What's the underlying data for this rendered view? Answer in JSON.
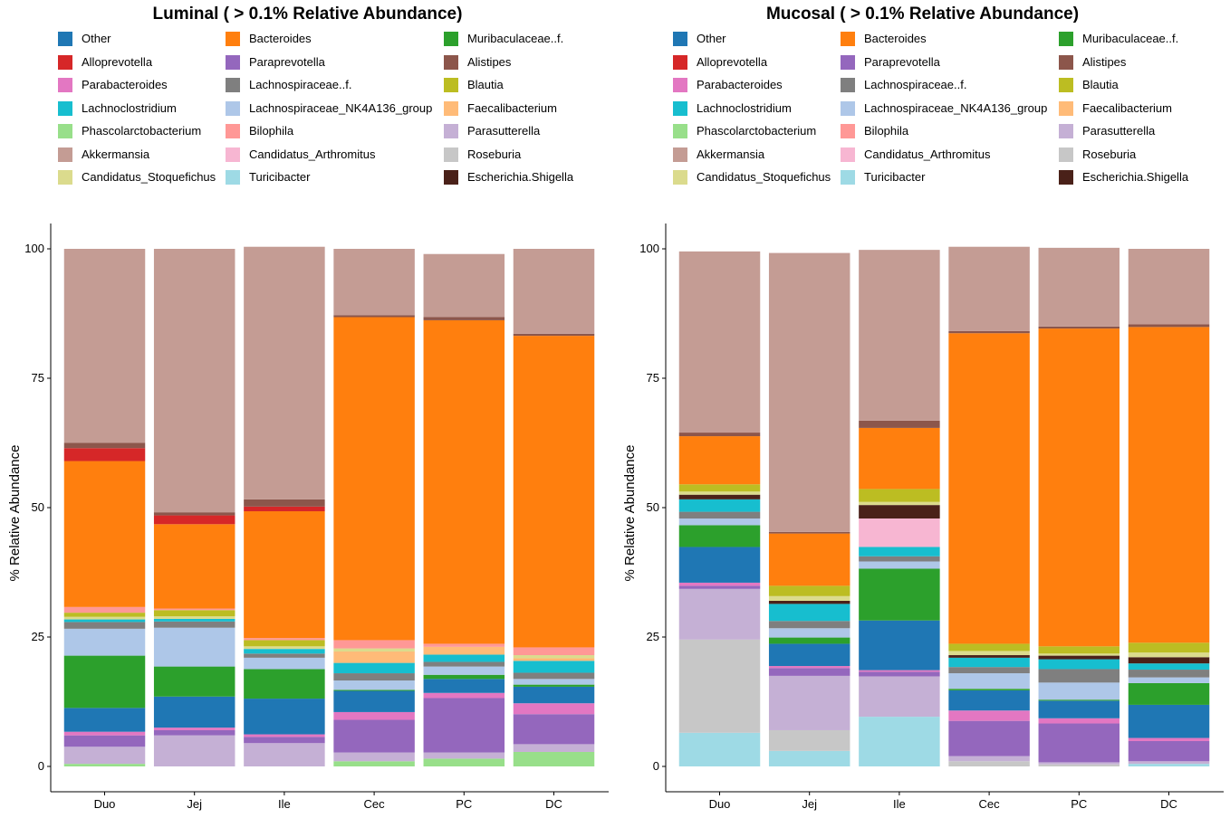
{
  "taxa": [
    "Other",
    "Bacteroides",
    "Muribaculaceae..f.",
    "Alloprevotella",
    "Paraprevotella",
    "Alistipes",
    "Parabacteroides",
    "Lachnospiraceae..f.",
    "Blautia",
    "Lachnoclostridium",
    "Lachnospiraceae_NK4A136_group",
    "Faecalibacterium",
    "Phascolarctobacterium",
    "Bilophila",
    "Parasutterella",
    "Akkermansia",
    "Candidatus_Arthromitus",
    "Roseburia",
    "Candidatus_Stoquefichus",
    "Turicibacter",
    "Escherichia.Shigella"
  ],
  "colors": {
    "Other": "#1f77b4",
    "Bacteroides": "#ff7f0e",
    "Muribaculaceae..f.": "#2ca02c",
    "Alloprevotella": "#d62728",
    "Paraprevotella": "#9467bd",
    "Alistipes": "#8c564b",
    "Parabacteroides": "#e377c2",
    "Lachnospiraceae..f.": "#7f7f7f",
    "Blautia": "#bcbd22",
    "Lachnoclostridium": "#17becf",
    "Lachnospiraceae_NK4A136_group": "#aec7e8",
    "Faecalibacterium": "#ffbb78",
    "Phascolarctobacterium": "#98df8a",
    "Bilophila": "#ff9896",
    "Parasutterella": "#c5b0d5",
    "Akkermansia": "#c49c94",
    "Candidatus_Arthromitus": "#f7b6d2",
    "Roseburia": "#c7c7c7",
    "Candidatus_Stoquefichus": "#dbdb8d",
    "Turicibacter": "#9edae5",
    "Escherichia.Shigella": "#4a2119"
  },
  "stack_order": [
    "Turicibacter",
    "Roseburia",
    "Phascolarctobacterium",
    "Parasutterella",
    "Paraprevotella",
    "Parabacteroides",
    "Other",
    "Muribaculaceae..f.",
    "Lachnospiraceae_NK4A136_group",
    "Lachnospiraceae..f.",
    "Lachnoclostridium",
    "Faecalibacterium",
    "Candidatus_Arthromitus",
    "Escherichia.Shigella",
    "Candidatus_Stoquefichus",
    "Blautia",
    "Bilophila",
    "Bacteroides",
    "Alloprevotella",
    "Alistipes",
    "Akkermansia"
  ],
  "chart_data": [
    {
      "type": "bar",
      "stacked": true,
      "title": "Luminal ( > 0.1% Relative Abundance)",
      "xlabel": "",
      "ylabel": "% Relative Abundance",
      "ylim": [
        0,
        100
      ],
      "yticks": [
        0,
        25,
        50,
        75,
        100
      ],
      "categories": [
        "Duo",
        "Jej",
        "Ile",
        "Cec",
        "PC",
        "DC"
      ],
      "series": [
        {
          "name": "Turicibacter",
          "values": [
            0,
            0,
            0,
            0,
            0,
            0
          ]
        },
        {
          "name": "Roseburia",
          "values": [
            0,
            0,
            0,
            0,
            0,
            0
          ]
        },
        {
          "name": "Phascolarctobacterium",
          "values": [
            0.5,
            0,
            0,
            1.0,
            1.5,
            2.8
          ]
        },
        {
          "name": "Parasutterella",
          "values": [
            3.3,
            6.0,
            4.5,
            1.7,
            1.2,
            1.5
          ]
        },
        {
          "name": "Paraprevotella",
          "values": [
            2.2,
            1.0,
            1.2,
            6.3,
            10.5,
            5.8
          ]
        },
        {
          "name": "Parabacteroides",
          "values": [
            0.7,
            0.5,
            0.5,
            1.5,
            1.0,
            2.1
          ]
        },
        {
          "name": "Other",
          "values": [
            4.6,
            6.0,
            6.9,
            4.1,
            2.7,
            3.2
          ]
        },
        {
          "name": "Muribaculaceae..f.",
          "values": [
            10.1,
            5.8,
            5.7,
            0.2,
            0.8,
            0.4
          ]
        },
        {
          "name": "Lachnospiraceae_NK4A136_group",
          "values": [
            5.2,
            7.5,
            2.2,
            1.8,
            1.6,
            1.1
          ]
        },
        {
          "name": "Lachnospiraceae..f.",
          "values": [
            1.3,
            1.2,
            0.8,
            1.4,
            0.9,
            1.2
          ]
        },
        {
          "name": "Lachnoclostridium",
          "values": [
            0.5,
            0.5,
            0.9,
            2.0,
            1.4,
            2.3
          ]
        },
        {
          "name": "Faecalibacterium",
          "values": [
            0,
            0,
            0,
            2.2,
            1.5,
            0.5
          ]
        },
        {
          "name": "Candidatus_Arthromitus",
          "values": [
            0,
            0,
            0,
            0,
            0,
            0
          ]
        },
        {
          "name": "Escherichia.Shigella",
          "values": [
            0,
            0,
            0,
            0,
            0,
            0
          ]
        },
        {
          "name": "Candidatus_Stoquefichus",
          "values": [
            0.5,
            0.5,
            0.5,
            0.6,
            0,
            0.6
          ]
        },
        {
          "name": "Blautia",
          "values": [
            0.8,
            1.2,
            1.2,
            0,
            0,
            0
          ]
        },
        {
          "name": "Bilophila",
          "values": [
            1.1,
            0.3,
            0.4,
            1.6,
            0.6,
            1.5
          ]
        },
        {
          "name": "Bacteroides",
          "values": [
            28.2,
            16.3,
            24.5,
            62.4,
            62.5,
            60.2
          ]
        },
        {
          "name": "Alloprevotella",
          "values": [
            2.5,
            1.7,
            0.9,
            0,
            0,
            0
          ]
        },
        {
          "name": "Alistipes",
          "values": [
            1.0,
            0.6,
            1.4,
            0.4,
            0.6,
            0.4
          ]
        },
        {
          "name": "Akkermansia",
          "values": [
            37.5,
            50.9,
            48.8,
            12.8,
            12.2,
            16.4
          ]
        }
      ]
    },
    {
      "type": "bar",
      "stacked": true,
      "title": "Mucosal ( > 0.1% Relative Abundance)",
      "xlabel": "",
      "ylabel": "% Relative Abundance",
      "ylim": [
        0,
        100
      ],
      "yticks": [
        0,
        25,
        50,
        75,
        100
      ],
      "categories": [
        "Duo",
        "Jej",
        "Ile",
        "Cec",
        "PC",
        "DC"
      ],
      "series": [
        {
          "name": "Turicibacter",
          "values": [
            6.5,
            3.0,
            9.6,
            0,
            0,
            0.5
          ]
        },
        {
          "name": "Roseburia",
          "values": [
            18.0,
            4.0,
            0,
            1.0,
            0.4,
            0
          ]
        },
        {
          "name": "Phascolarctobacterium",
          "values": [
            0,
            0,
            0,
            0,
            0,
            0
          ]
        },
        {
          "name": "Parasutterella",
          "values": [
            9.8,
            10.5,
            7.8,
            1.0,
            0.4,
            0.5
          ]
        },
        {
          "name": "Paraprevotella",
          "values": [
            0.6,
            1.5,
            0.9,
            6.8,
            7.5,
            3.9
          ]
        },
        {
          "name": "Parabacteroides",
          "values": [
            0.6,
            0.4,
            0.3,
            2.0,
            1.0,
            0.6
          ]
        },
        {
          "name": "Other",
          "values": [
            6.9,
            4.3,
            9.6,
            3.9,
            3.4,
            6.4
          ]
        },
        {
          "name": "Muribaculaceae..f.",
          "values": [
            4.2,
            1.2,
            10.0,
            0.3,
            0.2,
            4.2
          ]
        },
        {
          "name": "Lachnospiraceae_NK4A136_group",
          "values": [
            1.3,
            1.8,
            1.4,
            3.0,
            3.3,
            1.1
          ]
        },
        {
          "name": "Lachnospiraceae..f.",
          "values": [
            1.3,
            1.4,
            1.0,
            1.2,
            2.6,
            1.5
          ]
        },
        {
          "name": "Lachnoclostridium",
          "values": [
            2.4,
            3.3,
            1.8,
            1.8,
            1.9,
            1.2
          ]
        },
        {
          "name": "Faecalibacterium",
          "values": [
            0,
            0,
            0,
            0,
            0,
            0
          ]
        },
        {
          "name": "Candidatus_Arthromitus",
          "values": [
            0,
            0,
            5.5,
            0,
            0,
            0
          ]
        },
        {
          "name": "Escherichia.Shigella",
          "values": [
            0.9,
            0.6,
            2.6,
            0.5,
            0.7,
            1.2
          ]
        },
        {
          "name": "Candidatus_Stoquefichus",
          "values": [
            0.6,
            0.9,
            0.6,
            0.8,
            0.4,
            0.9
          ]
        },
        {
          "name": "Blautia",
          "values": [
            1.4,
            2.0,
            2.5,
            1.4,
            1.4,
            1.9
          ]
        },
        {
          "name": "Bilophila",
          "values": [
            0,
            0,
            0,
            0,
            0,
            0
          ]
        },
        {
          "name": "Bacteroides",
          "values": [
            9.3,
            10.1,
            11.8,
            60.0,
            61.4,
            61.0
          ]
        },
        {
          "name": "Alloprevotella",
          "values": [
            0,
            0,
            0,
            0,
            0,
            0
          ]
        },
        {
          "name": "Alistipes",
          "values": [
            0.7,
            0.3,
            1.4,
            0.4,
            0.4,
            0.5
          ]
        },
        {
          "name": "Akkermansia",
          "values": [
            35.0,
            53.9,
            33.0,
            16.3,
            15.2,
            14.6
          ]
        }
      ]
    }
  ],
  "legend": {
    "columns": [
      [
        "Other",
        "Alloprevotella",
        "Parabacteroides",
        "Lachnoclostridium",
        "Phascolarctobacterium",
        "Akkermansia",
        "Candidatus_Stoquefichus"
      ],
      [
        "Bacteroides",
        "Paraprevotella",
        "Lachnospiraceae..f.",
        "Lachnospiraceae_NK4A136_group",
        "Bilophila",
        "Candidatus_Arthromitus",
        "Turicibacter"
      ],
      [
        "Muribaculaceae..f.",
        "Alistipes",
        "Blautia",
        "Faecalibacterium",
        "Parasutterella",
        "Roseburia",
        "Escherichia.Shigella"
      ]
    ],
    "placement": "top"
  }
}
